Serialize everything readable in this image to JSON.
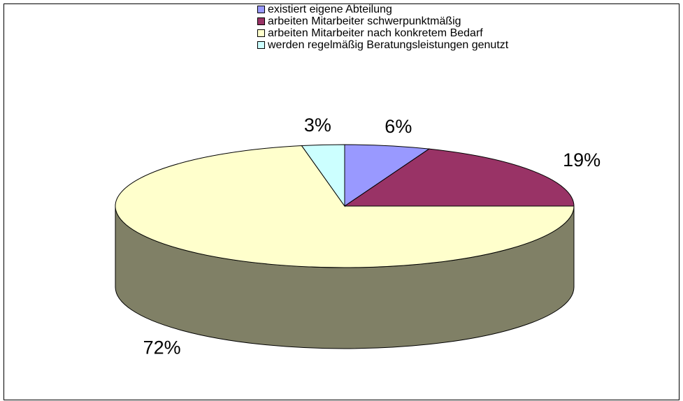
{
  "chart_data": {
    "type": "pie",
    "categories": [
      "existiert eigene Abteilung",
      "arbeiten Mitarbeiter schwerpunktmäßig",
      "arbeiten Mitarbeiter nach konkretem Bedarf",
      "werden regelmäßig Beratungsleistungen genutzt"
    ],
    "values": [
      6,
      19,
      72,
      3
    ],
    "value_labels": [
      "6%",
      "19%",
      "72%",
      "3%"
    ],
    "colors": [
      "#9999ff",
      "#993366",
      "#ffffcc",
      "#ccffff"
    ],
    "legend": "top"
  }
}
